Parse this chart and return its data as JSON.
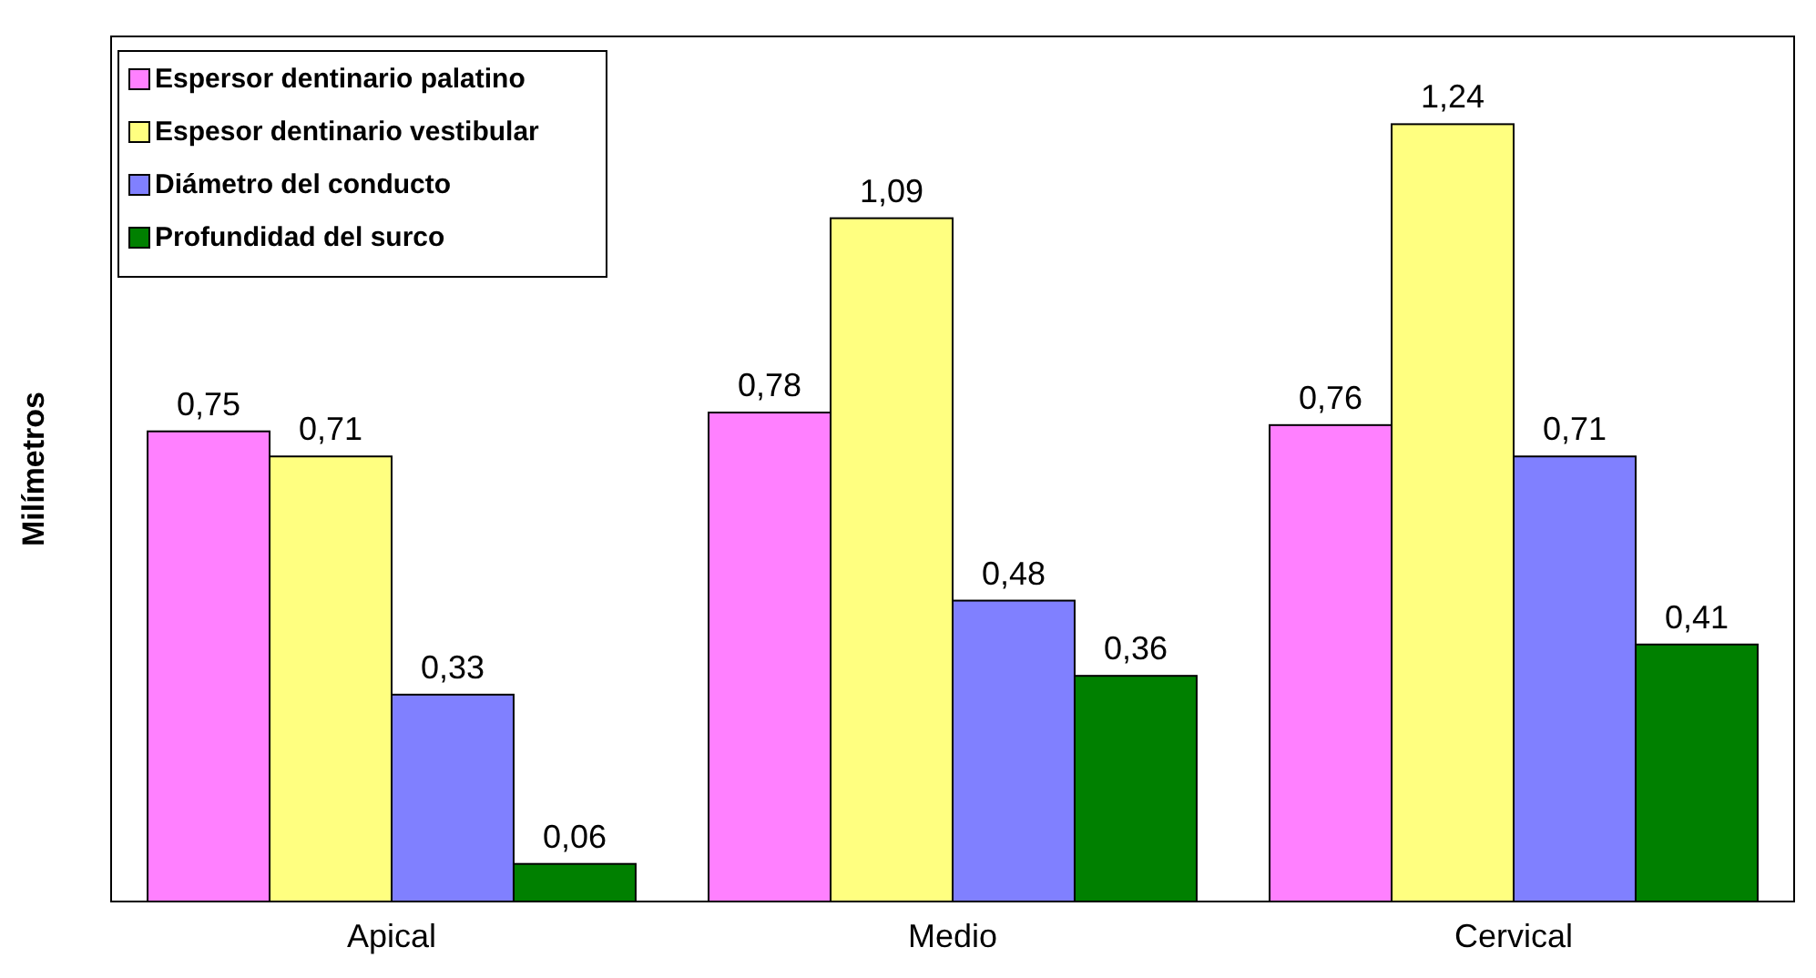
{
  "chart_data": {
    "type": "bar",
    "ylabel": "Milímetros",
    "categories": [
      "Apical",
      "Medio",
      "Cervical"
    ],
    "ylim": [
      0,
      1.38
    ],
    "tick_labels": "x",
    "legend": "top left",
    "series": [
      {
        "name": "Espersor dentinario palatino",
        "color": "#ff80ff",
        "values": [
          0.75,
          0.78,
          0.76
        ],
        "value_labels": [
          "0,75",
          "0,78",
          "0,76"
        ]
      },
      {
        "name": "Espesor dentinario vestibular",
        "color": "#ffff80",
        "values": [
          0.71,
          1.09,
          1.24
        ],
        "value_labels": [
          "0,71",
          "1,09",
          "1,24"
        ]
      },
      {
        "name": "Diámetro del conducto",
        "color": "#8080ff",
        "values": [
          0.33,
          0.48,
          0.71
        ],
        "value_labels": [
          "0,33",
          "0,48",
          "0,71"
        ]
      },
      {
        "name": "Profundidad del surco",
        "color": "#008000",
        "values": [
          0.06,
          0.36,
          0.41
        ],
        "value_labels": [
          "0,06",
          "0,36",
          "0,41"
        ]
      }
    ]
  }
}
